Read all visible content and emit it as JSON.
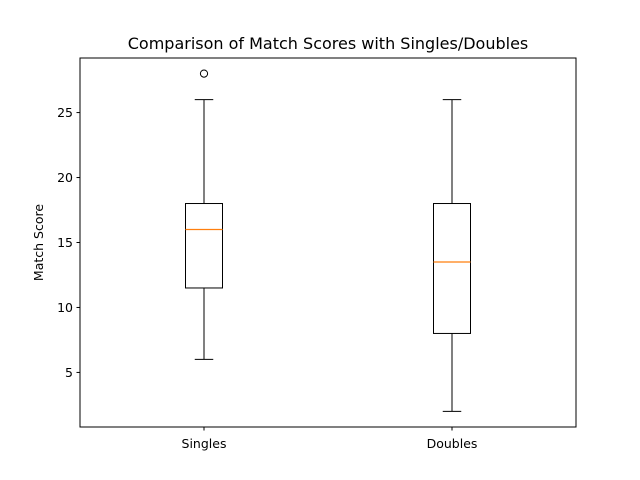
{
  "chart_data": {
    "type": "box",
    "title": "Comparison of Match Scores with Singles/Doubles",
    "xlabel": "",
    "ylabel": "Match Score",
    "categories": [
      "Singles",
      "Doubles"
    ],
    "boxes": [
      {
        "category": "Singles",
        "whisker_low": 6,
        "q1": 11.5,
        "median": 16,
        "q3": 18,
        "whisker_high": 26,
        "outliers": [
          28
        ]
      },
      {
        "category": "Doubles",
        "whisker_low": 2,
        "q1": 8,
        "median": 13.5,
        "q3": 18,
        "whisker_high": 26,
        "outliers": []
      }
    ],
    "ylim": [
      0.8,
      29.2
    ],
    "yticks": [
      5,
      10,
      15,
      20,
      25
    ],
    "grid": false,
    "legend": "none",
    "colors": {
      "box": "#000000",
      "median": "#ff7f0e",
      "outlier": "#000000",
      "background": "#ffffff"
    }
  }
}
